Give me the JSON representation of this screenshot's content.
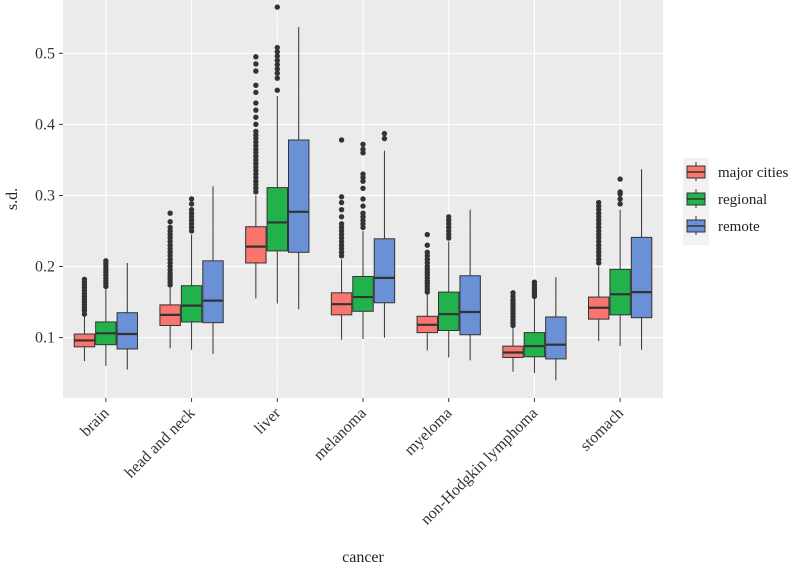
{
  "chart_data": {
    "type": "boxplot",
    "title": "",
    "xlabel": "cancer",
    "ylabel": "s.d.",
    "ylim": [
      0.015,
      0.575
    ],
    "yticks": [
      0.1,
      0.2,
      0.3,
      0.4,
      0.5
    ],
    "ytick_labels": [
      "0.1",
      "0.2",
      "0.3",
      "0.4",
      "0.5"
    ],
    "grid": true,
    "legend_position": "right",
    "categories": [
      "brain",
      "head and neck",
      "liver",
      "melanoma",
      "myeloma",
      "non-Hodgkin lymphoma",
      "stomach"
    ],
    "series": [
      {
        "name": "major cities",
        "color": "#F8766D",
        "boxes": [
          {
            "whisker_low": 0.067,
            "q1": 0.087,
            "median": 0.096,
            "q3": 0.105,
            "whisker_high": 0.13,
            "outliers": [
              0.133,
              0.138,
              0.142,
              0.146,
              0.15,
              0.154,
              0.158,
              0.162,
              0.166,
              0.17,
              0.174,
              0.178,
              0.182
            ]
          },
          {
            "whisker_low": 0.085,
            "q1": 0.117,
            "median": 0.132,
            "q3": 0.146,
            "whisker_high": 0.17,
            "outliers": [
              0.174,
              0.178,
              0.182,
              0.186,
              0.19,
              0.195,
              0.2,
              0.205,
              0.21,
              0.215,
              0.22,
              0.225,
              0.23,
              0.235,
              0.24,
              0.245,
              0.25,
              0.255,
              0.263,
              0.275
            ]
          },
          {
            "whisker_low": 0.155,
            "q1": 0.205,
            "median": 0.228,
            "q3": 0.256,
            "whisker_high": 0.3,
            "outliers": [
              0.305,
              0.31,
              0.315,
              0.32,
              0.325,
              0.33,
              0.335,
              0.34,
              0.345,
              0.35,
              0.355,
              0.36,
              0.365,
              0.37,
              0.375,
              0.38,
              0.385,
              0.39,
              0.4,
              0.41,
              0.42,
              0.43,
              0.445,
              0.455,
              0.475,
              0.485,
              0.495
            ]
          },
          {
            "whisker_low": 0.097,
            "q1": 0.132,
            "median": 0.147,
            "q3": 0.163,
            "whisker_high": 0.21,
            "outliers": [
              0.215,
              0.22,
              0.225,
              0.23,
              0.235,
              0.24,
              0.245,
              0.25,
              0.255,
              0.26,
              0.27,
              0.28,
              0.29,
              0.298,
              0.378
            ]
          },
          {
            "whisker_low": 0.082,
            "q1": 0.107,
            "median": 0.118,
            "q3": 0.13,
            "whisker_high": 0.16,
            "outliers": [
              0.164,
              0.168,
              0.172,
              0.176,
              0.18,
              0.184,
              0.188,
              0.192,
              0.196,
              0.2,
              0.205,
              0.21,
              0.215,
              0.22,
              0.23,
              0.245
            ]
          },
          {
            "whisker_low": 0.052,
            "q1": 0.072,
            "median": 0.079,
            "q3": 0.088,
            "whisker_high": 0.113,
            "outliers": [
              0.117,
              0.121,
              0.125,
              0.129,
              0.133,
              0.137,
              0.141,
              0.145,
              0.149,
              0.153,
              0.158,
              0.163
            ]
          },
          {
            "whisker_low": 0.095,
            "q1": 0.126,
            "median": 0.142,
            "q3": 0.157,
            "whisker_high": 0.2,
            "outliers": [
              0.205,
              0.21,
              0.215,
              0.22,
              0.225,
              0.23,
              0.235,
              0.24,
              0.245,
              0.25,
              0.255,
              0.26,
              0.265,
              0.27,
              0.275,
              0.28,
              0.285,
              0.29
            ]
          }
        ]
      },
      {
        "name": "regional",
        "color": "#22B24C",
        "boxes": [
          {
            "whisker_low": 0.06,
            "q1": 0.09,
            "median": 0.106,
            "q3": 0.122,
            "whisker_high": 0.168,
            "outliers": [
              0.172,
              0.176,
              0.18,
              0.184,
              0.188,
              0.192,
              0.196,
              0.2,
              0.204,
              0.208
            ]
          },
          {
            "whisker_low": 0.083,
            "q1": 0.122,
            "median": 0.145,
            "q3": 0.173,
            "whisker_high": 0.245,
            "outliers": [
              0.25,
              0.255,
              0.26,
              0.265,
              0.27,
              0.275,
              0.28,
              0.288,
              0.295
            ]
          },
          {
            "whisker_low": 0.148,
            "q1": 0.222,
            "median": 0.262,
            "q3": 0.311,
            "whisker_high": 0.44,
            "outliers": [
              0.448,
              0.465,
              0.472,
              0.478,
              0.484,
              0.49,
              0.496,
              0.502,
              0.508,
              0.565
            ]
          },
          {
            "whisker_low": 0.098,
            "q1": 0.137,
            "median": 0.157,
            "q3": 0.186,
            "whisker_high": 0.25,
            "outliers": [
              0.255,
              0.26,
              0.265,
              0.27,
              0.275,
              0.285,
              0.295,
              0.31,
              0.32,
              0.325,
              0.33,
              0.36,
              0.365,
              0.372
            ]
          },
          {
            "whisker_low": 0.072,
            "q1": 0.11,
            "median": 0.133,
            "q3": 0.164,
            "whisker_high": 0.235,
            "outliers": [
              0.24,
              0.245,
              0.25,
              0.255,
              0.26,
              0.265,
              0.27
            ]
          },
          {
            "whisker_low": 0.05,
            "q1": 0.073,
            "median": 0.088,
            "q3": 0.107,
            "whisker_high": 0.155,
            "outliers": [
              0.158,
              0.161,
              0.164,
              0.167,
              0.17,
              0.174,
              0.178
            ]
          },
          {
            "whisker_low": 0.088,
            "q1": 0.132,
            "median": 0.161,
            "q3": 0.196,
            "whisker_high": 0.28,
            "outliers": [
              0.288,
              0.295,
              0.302,
              0.305,
              0.323
            ]
          }
        ]
      },
      {
        "name": "remote",
        "color": "#6A90D6",
        "boxes": [
          {
            "whisker_low": 0.055,
            "q1": 0.084,
            "median": 0.105,
            "q3": 0.135,
            "whisker_high": 0.205,
            "outliers": []
          },
          {
            "whisker_low": 0.077,
            "q1": 0.121,
            "median": 0.152,
            "q3": 0.208,
            "whisker_high": 0.313,
            "outliers": []
          },
          {
            "whisker_low": 0.14,
            "q1": 0.22,
            "median": 0.277,
            "q3": 0.378,
            "whisker_high": 0.537,
            "outliers": []
          },
          {
            "whisker_low": 0.1,
            "q1": 0.149,
            "median": 0.184,
            "q3": 0.239,
            "whisker_high": 0.363,
            "outliers": [
              0.38,
              0.387
            ]
          },
          {
            "whisker_low": 0.068,
            "q1": 0.104,
            "median": 0.136,
            "q3": 0.187,
            "whisker_high": 0.28,
            "outliers": []
          },
          {
            "whisker_low": 0.04,
            "q1": 0.07,
            "median": 0.09,
            "q3": 0.129,
            "whisker_high": 0.185,
            "outliers": []
          },
          {
            "whisker_low": 0.083,
            "q1": 0.128,
            "median": 0.164,
            "q3": 0.241,
            "whisker_high": 0.337,
            "outliers": []
          }
        ]
      }
    ]
  },
  "colors": {
    "panel_background": "#EBEBEB",
    "grid_major": "#FFFFFF",
    "grid_minor": "#F2F2F2",
    "box_outline": "#333333",
    "outlier": "#333333"
  }
}
